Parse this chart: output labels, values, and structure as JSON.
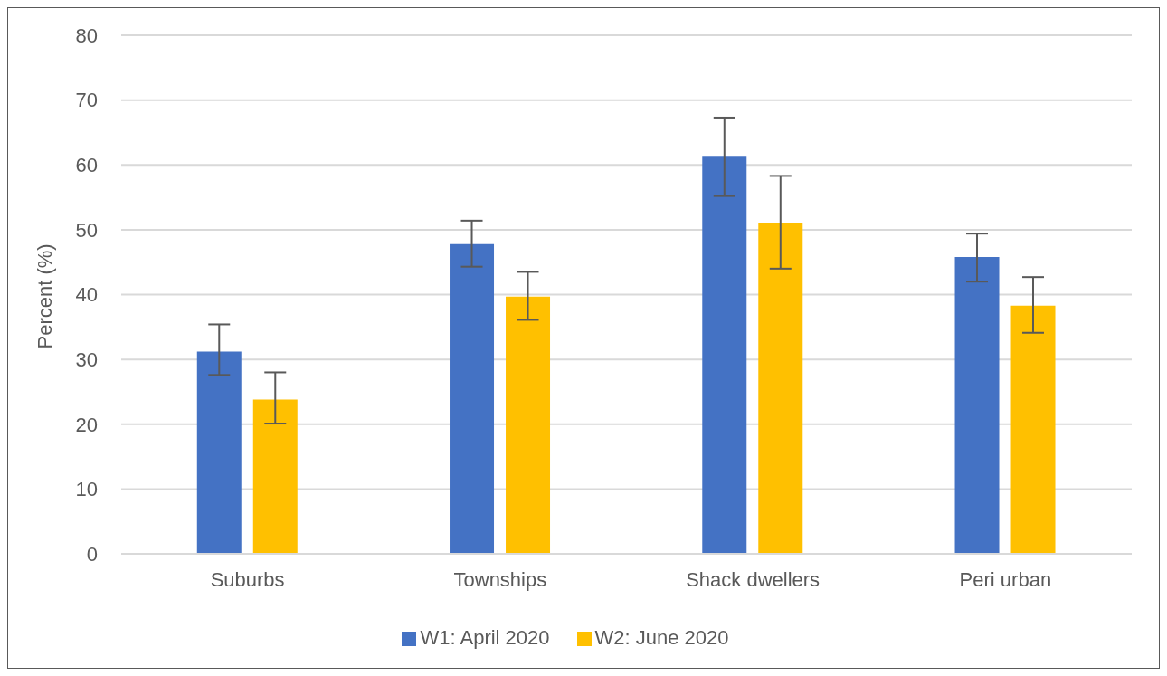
{
  "chart_data": {
    "type": "bar",
    "ylabel": "Percent (%)",
    "categories": [
      "Suburbs",
      "Townships",
      "Shack dwellers",
      "Peri urban"
    ],
    "series": [
      {
        "name": "W1: April 2020",
        "color": "#4472c4",
        "values": [
          31.2,
          47.8,
          61.4,
          45.8
        ],
        "errors": [
          [
            27.6,
            35.4
          ],
          [
            44.3,
            51.4
          ],
          [
            55.2,
            67.3
          ],
          [
            42.0,
            49.4
          ]
        ]
      },
      {
        "name": "W2: June 2020",
        "color": "#ffc000",
        "values": [
          23.8,
          39.7,
          51.1,
          38.3
        ],
        "errors": [
          [
            20.1,
            28.0
          ],
          [
            36.1,
            43.5
          ],
          [
            44.0,
            58.3
          ],
          [
            34.1,
            42.7
          ]
        ]
      }
    ],
    "ylim": [
      0,
      80
    ],
    "yticks": [
      0,
      10,
      20,
      30,
      40,
      50,
      60,
      70,
      80
    ],
    "grid": "y",
    "legend": "bottom"
  }
}
